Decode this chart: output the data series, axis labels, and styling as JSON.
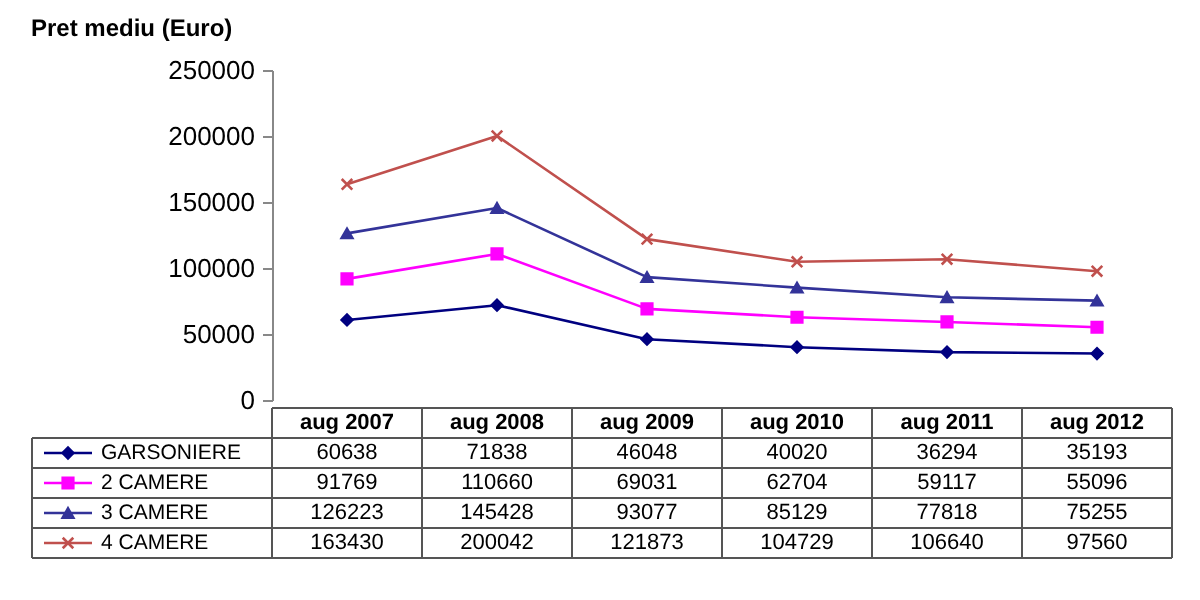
{
  "chart_data": {
    "type": "line",
    "title": "Pret mediu (Euro)",
    "categories": [
      "aug 2007",
      "aug 2008",
      "aug 2009",
      "aug 2010",
      "aug 2011",
      "aug 2012"
    ],
    "series": [
      {
        "name": "GARSONIERE",
        "color": "#000080",
        "marker": "diamond",
        "values": [
          60638,
          71838,
          46048,
          40020,
          36294,
          35193
        ]
      },
      {
        "name": "2 CAMERE",
        "color": "#ff00ff",
        "marker": "square",
        "values": [
          91769,
          110660,
          69031,
          62704,
          59117,
          55096
        ]
      },
      {
        "name": "3 CAMERE",
        "color": "#333399",
        "marker": "triangle",
        "values": [
          126223,
          145428,
          93077,
          85129,
          77818,
          75255
        ]
      },
      {
        "name": "4 CAMERE",
        "color": "#c0504d",
        "marker": "cross",
        "values": [
          163430,
          200042,
          121873,
          104729,
          106640,
          97560
        ]
      }
    ],
    "ylim": [
      0,
      250000
    ],
    "yticks": [
      0,
      50000,
      100000,
      150000,
      200000,
      250000
    ],
    "grid": false,
    "legend": "bottom left",
    "data_labels": true
  }
}
